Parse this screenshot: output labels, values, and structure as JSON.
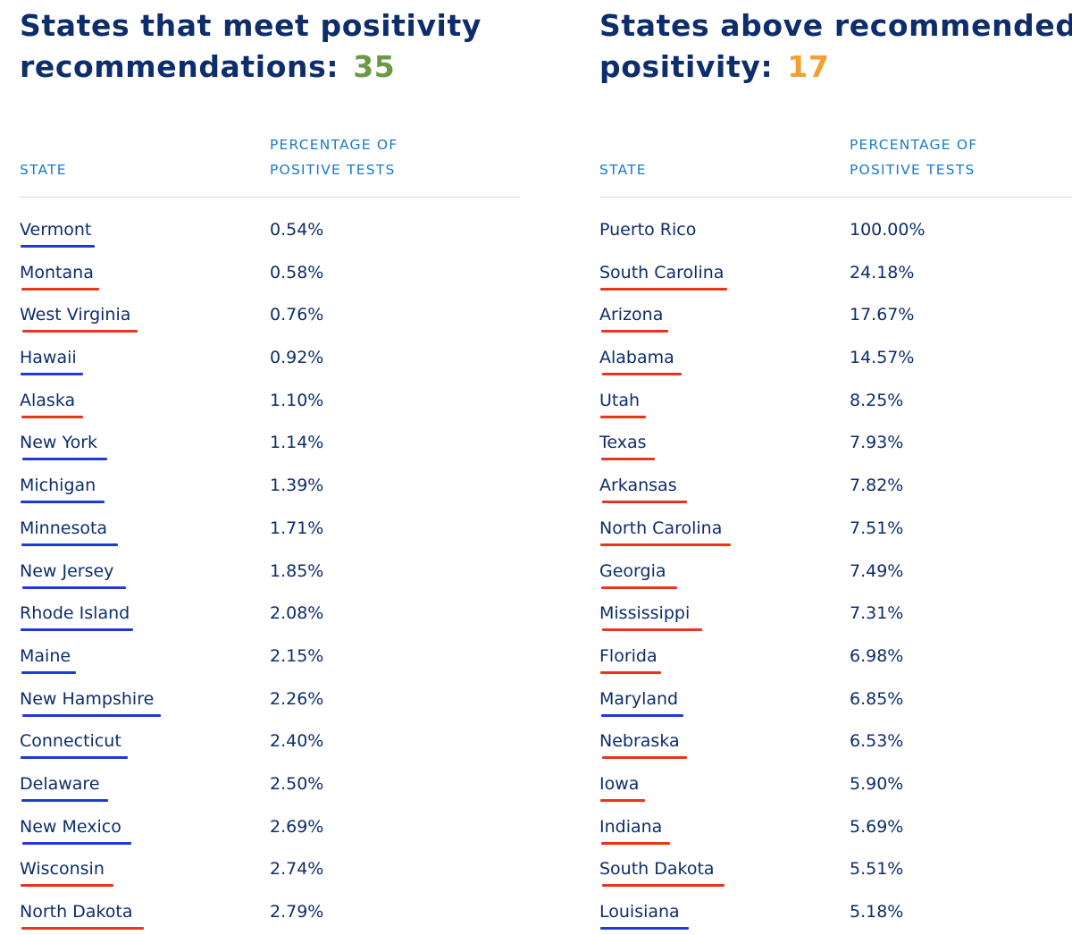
{
  "colors": {
    "title": "#0d2d6c",
    "header": "#1b79c9",
    "text": "#0d2d6c",
    "meet_count": "#6a9a45",
    "above_count": "#f3a02c",
    "underline_red": "#e8361c",
    "underline_blue": "#1f3ad6"
  },
  "left": {
    "title_line1": "States that meet positivity",
    "title_line2": "recommendations:",
    "count": "35",
    "col_state": "STATE",
    "col_pct_line1": "PERCENTAGE OF",
    "col_pct_line2": "POSITIVE TESTS",
    "rows": [
      {
        "state": "Vermont",
        "pct": "0.54%",
        "underline": "blue"
      },
      {
        "state": "Montana",
        "pct": "0.58%",
        "underline": "red"
      },
      {
        "state": "West Virginia",
        "pct": "0.76%",
        "underline": "red"
      },
      {
        "state": "Hawaii",
        "pct": "0.92%",
        "underline": "blue"
      },
      {
        "state": "Alaska",
        "pct": "1.10%",
        "underline": "red"
      },
      {
        "state": "New York",
        "pct": "1.14%",
        "underline": "blue"
      },
      {
        "state": "Michigan",
        "pct": "1.39%",
        "underline": "blue"
      },
      {
        "state": "Minnesota",
        "pct": "1.71%",
        "underline": "blue"
      },
      {
        "state": "New Jersey",
        "pct": "1.85%",
        "underline": "blue"
      },
      {
        "state": "Rhode Island",
        "pct": "2.08%",
        "underline": "blue"
      },
      {
        "state": "Maine",
        "pct": "2.15%",
        "underline": "blue"
      },
      {
        "state": "New Hampshire",
        "pct": "2.26%",
        "underline": "blue"
      },
      {
        "state": "Connecticut",
        "pct": "2.40%",
        "underline": "blue"
      },
      {
        "state": "Delaware",
        "pct": "2.50%",
        "underline": "blue"
      },
      {
        "state": "New Mexico",
        "pct": "2.69%",
        "underline": "blue"
      },
      {
        "state": "Wisconsin",
        "pct": "2.74%",
        "underline": "red"
      },
      {
        "state": "North Dakota",
        "pct": "2.79%",
        "underline": "red"
      }
    ]
  },
  "right": {
    "title_line1": "States above recommended",
    "title_line2": "positivity:",
    "count": "17",
    "col_state": "STATE",
    "col_pct_line1": "PERCENTAGE OF",
    "col_pct_line2": "POSITIVE TESTS",
    "rows": [
      {
        "state": "Puerto Rico",
        "pct": "100.00%",
        "underline": "none"
      },
      {
        "state": "South Carolina",
        "pct": "24.18%",
        "underline": "red"
      },
      {
        "state": "Arizona",
        "pct": "17.67%",
        "underline": "red"
      },
      {
        "state": "Alabama",
        "pct": "14.57%",
        "underline": "red"
      },
      {
        "state": "Utah",
        "pct": "8.25%",
        "underline": "red"
      },
      {
        "state": "Texas",
        "pct": "7.93%",
        "underline": "red"
      },
      {
        "state": "Arkansas",
        "pct": "7.82%",
        "underline": "red"
      },
      {
        "state": "North Carolina",
        "pct": "7.51%",
        "underline": "red"
      },
      {
        "state": "Georgia",
        "pct": "7.49%",
        "underline": "red"
      },
      {
        "state": "Mississippi",
        "pct": "7.31%",
        "underline": "red"
      },
      {
        "state": "Florida",
        "pct": "6.98%",
        "underline": "red"
      },
      {
        "state": "Maryland",
        "pct": "6.85%",
        "underline": "blue"
      },
      {
        "state": "Nebraska",
        "pct": "6.53%",
        "underline": "red"
      },
      {
        "state": "Iowa",
        "pct": "5.90%",
        "underline": "red"
      },
      {
        "state": "Indiana",
        "pct": "5.69%",
        "underline": "red"
      },
      {
        "state": "South Dakota",
        "pct": "5.51%",
        "underline": "red"
      },
      {
        "state": "Louisiana",
        "pct": "5.18%",
        "underline": "blue"
      }
    ]
  }
}
